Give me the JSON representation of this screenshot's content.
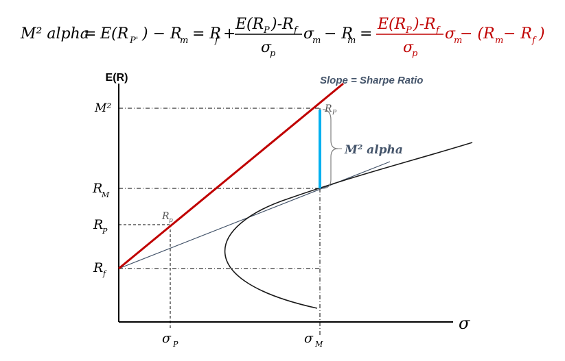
{
  "formula": {
    "lhs": "M² alpha",
    "eq1": "E(R",
    "eq1_sub": "P'",
    "eq1_end": ") − R",
    "rm_sub": "m",
    "eq2": "= R",
    "rf_sub": "f",
    "plus": "+",
    "frac1_num": "E(R",
    "frac1_num_sub": "P",
    "frac1_num_end": ")-R",
    "frac1_num_rf_sub": "f",
    "frac1_den": "σ",
    "frac1_den_sub": "p",
    "sigma_m": "σ",
    "sigma_m_sub": "m",
    "minus_rm": "− R",
    "eq3": "=",
    "frac2_num": "E(R",
    "frac2_num_sub": "P",
    "frac2_num_end": ")-R",
    "frac2_num_rf_sub": "f",
    "frac2_den": "σ",
    "frac2_den_sub": "p",
    "tail": "σ",
    "tail_sub": "m",
    "tail_rest": " − (R",
    "tail_rm_sub": "m",
    "tail_mid": " − R",
    "tail_rf_sub": "f",
    "tail_close": ")"
  },
  "diagram": {
    "y_axis_label": "E(R)",
    "x_axis_label": "σ",
    "slope_label": "Slope = Sharpe Ratio",
    "m2_alpha_label": "M² alpha",
    "y_ticks": {
      "m2": "M²",
      "rm": "R",
      "rm_sub": "M",
      "rp": "R",
      "rp_sub": "P",
      "rf": "R",
      "rf_sub": "f"
    },
    "x_ticks": {
      "sigma_p": "σ",
      "sigma_p_sub": "P",
      "sigma_m": "σ",
      "sigma_m_sub": "M"
    },
    "point_labels": {
      "rp_point": "R",
      "rp_point_sub": "p",
      "rp_top": "R",
      "rp_top_sub": "P"
    },
    "colors": {
      "cml": "#c00000",
      "axis": "#000000",
      "frontier": "#1a1a1a",
      "guide": "#000000",
      "m2_bar": "#00b0f0",
      "formula_red": "#c00000",
      "thin_line": "#44546a"
    }
  }
}
